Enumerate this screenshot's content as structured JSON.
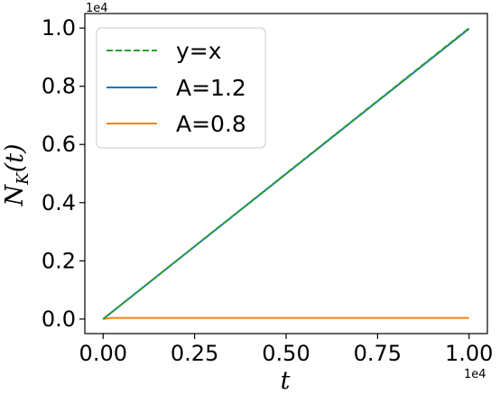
{
  "chart_data": {
    "type": "line",
    "title": "",
    "xlabel": "t",
    "ylabel_main": "N",
    "ylabel_sub": "K",
    "ylabel_tail": "(t)",
    "x_offset_label": "1e4",
    "y_offset_label": "1e4",
    "xlim": [
      -0.05,
      1.05
    ],
    "ylim": [
      -0.05,
      1.05
    ],
    "x_ticks": [
      0,
      0.25,
      0.5,
      0.75,
      1.0
    ],
    "x_tick_labels": [
      "0.00",
      "0.25",
      "0.50",
      "0.75",
      "1.00"
    ],
    "y_ticks": [
      0,
      0.2,
      0.4,
      0.6,
      0.8,
      1.0
    ],
    "y_tick_labels": [
      "0.0",
      "0.2",
      "0.4",
      "0.6",
      "0.8",
      "1.0"
    ],
    "grid": false,
    "legend_position": "top-left",
    "series": [
      {
        "name": "y=x",
        "color": "#2ca02c",
        "style": "dashed",
        "x": [
          0,
          1
        ],
        "y": [
          0,
          1
        ]
      },
      {
        "name": "A=1.2",
        "color": "#1f77b4",
        "style": "solid",
        "x": [
          0,
          1
        ],
        "y": [
          0,
          0.998
        ]
      },
      {
        "name": "A=0.8",
        "color": "#ff7f0e",
        "style": "solid",
        "x": [
          0,
          0.02,
          1
        ],
        "y": [
          0,
          0.004,
          0.004
        ]
      }
    ]
  }
}
